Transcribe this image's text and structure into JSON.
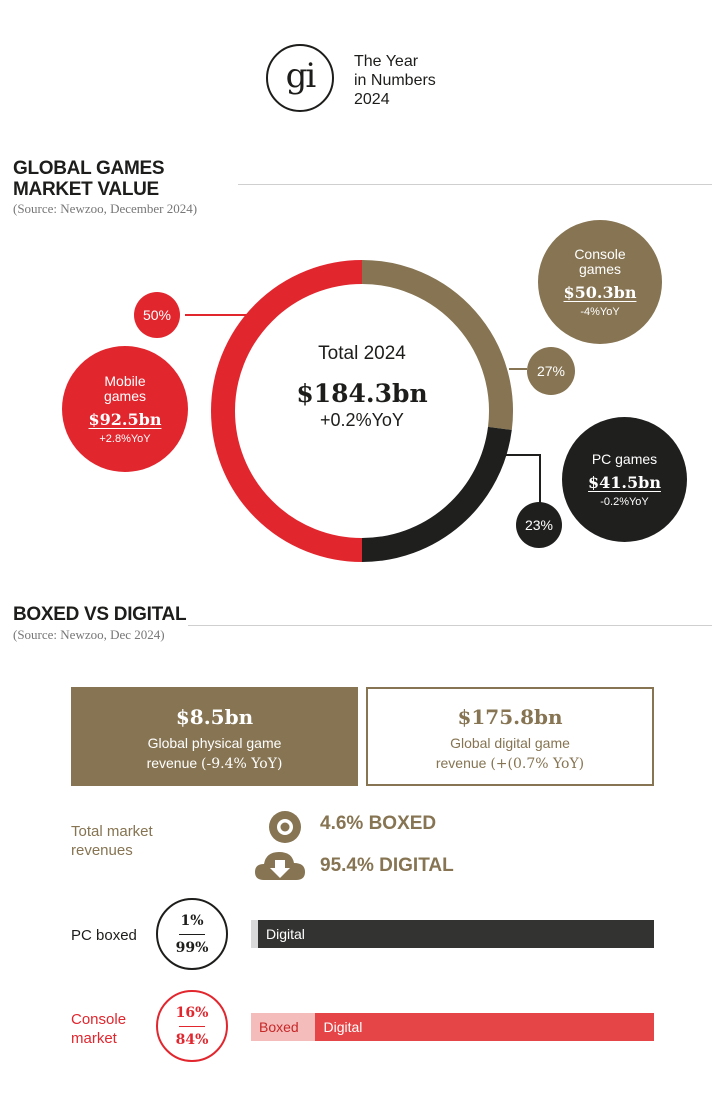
{
  "header": {
    "logo_text": "gi",
    "lines": [
      "The Year",
      "in Numbers",
      "2024"
    ]
  },
  "section1": {
    "title_line1": "GLOBAL GAMES",
    "title_line2": "MARKET VALUE",
    "source": "(Source: Newzoo, December 2024)"
  },
  "section2": {
    "title": "BOXED VS DIGITAL",
    "source": "(Source: Newzoo, Dec 2024)"
  },
  "donut": {
    "center_title": "Total 2024",
    "center_value": "$184.3bn",
    "center_yoy": "+0.2%YoY"
  },
  "segments": [
    {
      "key": "console",
      "label_lines": [
        "Console",
        "games"
      ],
      "value_text": "$50.3bn",
      "yoy": "-4%YoY",
      "percent_text": "27%",
      "color": "#867452"
    },
    {
      "key": "pc",
      "label_lines": [
        "PC games"
      ],
      "value_text": "$41.5bn",
      "yoy": "-0.2%YoY",
      "percent_text": "23%",
      "color": "#1f201e"
    },
    {
      "key": "mobile",
      "label_lines": [
        "Mobile",
        "games"
      ],
      "value_text": "$92.5bn",
      "yoy": "+2.8%YoY",
      "percent_text": "50%",
      "color": "#e2262e"
    }
  ],
  "boxed_digital": {
    "physical": {
      "value": "$8.5bn",
      "line1": "Global physical game",
      "line2_prefix": "revenue",
      "line2_paren": "(-9.4% YoY)"
    },
    "digital": {
      "value": "$175.8bn",
      "line1": "Global digital game",
      "line2_prefix": "revenue",
      "line2_paren": "(+(0.7% YoY)"
    },
    "total_label_lines": [
      "Total market",
      "revenues"
    ],
    "boxed_text": "4.6% BOXED",
    "digital_text": "95.4% DIGITAL",
    "pc": {
      "label": "PC boxed",
      "top": "1%",
      "bottom": "99%",
      "bar_label": "Digital"
    },
    "console": {
      "label_lines": [
        "Console",
        "market"
      ],
      "top": "16%",
      "bottom": "84%",
      "boxed_label": "Boxed",
      "digital_label": "Digital"
    }
  },
  "colors": {
    "red": "#e2262e",
    "olive": "#867452",
    "dark": "#1f201e",
    "pc_bar": "#333431",
    "console_bar": "#e64547",
    "boxed_pink": "#f5bcbc"
  },
  "chart_data": [
    {
      "type": "pie",
      "title": "GLOBAL GAMES MARKET VALUE",
      "categories": [
        "Console games",
        "PC games",
        "Mobile games"
      ],
      "values": [
        50.3,
        41.5,
        92.5
      ],
      "percentages": [
        27,
        23,
        50
      ],
      "yoy_percent": [
        -4,
        -0.2,
        2.8
      ],
      "total": 184.3,
      "total_yoy_percent": 0.2,
      "unit": "$bn"
    },
    {
      "type": "bar",
      "title": "BOXED VS DIGITAL",
      "categories": [
        "PC boxed",
        "Console market"
      ],
      "series": [
        {
          "name": "Boxed",
          "values": [
            1,
            16
          ]
        },
        {
          "name": "Digital",
          "values": [
            99,
            84
          ]
        }
      ],
      "unit": "%"
    }
  ]
}
